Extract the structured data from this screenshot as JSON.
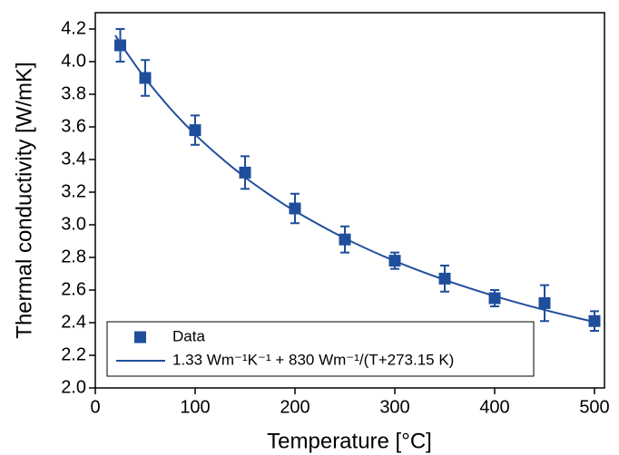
{
  "chart_data": {
    "type": "scatter",
    "x_label": "Temperature [°C]",
    "y_label": "Thermal conductivity [W/mK]",
    "xlim": [
      0,
      510
    ],
    "ylim": [
      2.0,
      4.3
    ],
    "xticks": [
      0,
      100,
      200,
      300,
      400,
      500
    ],
    "yticks": [
      {
        "value": 2.0,
        "label": "2.0"
      },
      2.2,
      2.4,
      2.6,
      2.8,
      {
        "value": 3.0,
        "label": "3.0"
      },
      3.2,
      3.4,
      3.6,
      3.8,
      {
        "value": 4.0,
        "label": "4.0"
      },
      4.2
    ],
    "series": [
      {
        "name": "Data",
        "type": "scatter",
        "color": "#1f4e9c",
        "x": [
          25,
          50,
          100,
          150,
          200,
          250,
          300,
          350,
          400,
          450,
          500
        ],
        "values": [
          4.1,
          3.9,
          3.58,
          3.32,
          3.1,
          2.91,
          2.78,
          2.67,
          2.55,
          2.52,
          2.41
        ],
        "errors": [
          0.1,
          0.11,
          0.09,
          0.1,
          0.09,
          0.08,
          0.05,
          0.08,
          0.05,
          0.11,
          0.06
        ]
      },
      {
        "name": "1.33 Wm⁻¹K⁻¹ + 830 Wm⁻¹/(T+273.15 K)",
        "type": "line",
        "color": "#1f4e9c",
        "x": [
          20,
          25,
          35,
          50,
          75,
          100,
          125,
          150,
          175,
          200,
          250,
          300,
          350,
          400,
          450,
          500
        ],
        "values": [
          4.161,
          4.114,
          4.024,
          3.898,
          3.714,
          3.554,
          3.415,
          3.291,
          3.182,
          3.084,
          2.917,
          2.778,
          2.662,
          2.563,
          2.478,
          2.404
        ]
      }
    ],
    "legend": "lower left"
  }
}
